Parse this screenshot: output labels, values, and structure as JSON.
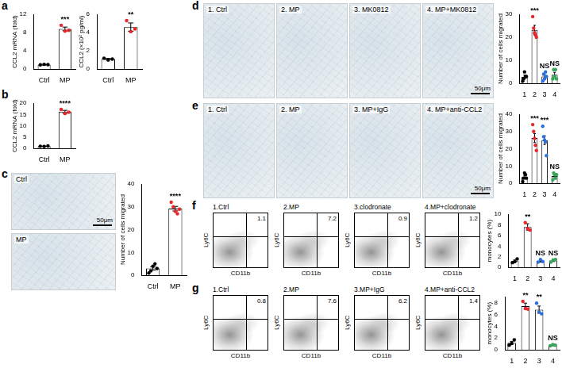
{
  "chart_data": [
    {
      "panel": "a",
      "type": "bar",
      "ylabel": "CCL2 mRNA (fold)",
      "categories": [
        "Ctrl",
        "MP"
      ],
      "values": [
        1.0,
        8.8
      ],
      "errors": [
        0.06,
        0.4
      ],
      "points": [
        [
          0.95,
          1.05,
          1.0
        ],
        [
          9.6,
          8.3,
          8.5
        ]
      ],
      "colors": [
        "#000000",
        "#e8262b"
      ],
      "annotations": [
        null,
        "***"
      ],
      "ylim": [
        0,
        12
      ],
      "yticks": [
        0,
        4,
        8,
        12
      ]
    },
    {
      "type": "bar",
      "ylabel": "CCL2 (×10² pg/ml)",
      "categories": [
        "Ctrl",
        "MP"
      ],
      "values": [
        1.1,
        4.6
      ],
      "errors": [
        0.07,
        0.45
      ],
      "points": [
        [
          1.2,
          1.0,
          1.1
        ],
        [
          5.3,
          4.1,
          4.4
        ]
      ],
      "colors": [
        "#000000",
        "#e8262b"
      ],
      "annotations": [
        null,
        "**"
      ],
      "ylim": [
        0,
        6
      ],
      "yticks": [
        0,
        2,
        4,
        6
      ]
    },
    {
      "panel": "b",
      "type": "bar",
      "ylabel": "CCL2 mRNA (fold)",
      "categories": [
        "Ctrl",
        "MP"
      ],
      "values": [
        1.0,
        16.2
      ],
      "errors": [
        0.05,
        0.6
      ],
      "points": [
        [
          1.0,
          0.9,
          1.1
        ],
        [
          17.2,
          15.4,
          16.0
        ]
      ],
      "colors": [
        "#000000",
        "#e8262b"
      ],
      "annotations": [
        null,
        "****"
      ],
      "ylim": [
        0,
        20
      ],
      "yticks": [
        0,
        5,
        10,
        15,
        20
      ]
    },
    {
      "type": "bar",
      "ylabel": "Number of cells migrated",
      "categories": [
        "Ctrl",
        "MP"
      ],
      "values": [
        3.0,
        29.2
      ],
      "errors": [
        0.7,
        1.0
      ],
      "points": [
        [
          1,
          2,
          4,
          5,
          3
        ],
        [
          32,
          30,
          28,
          27,
          29
        ]
      ],
      "colors": [
        "#000000",
        "#e8262b"
      ],
      "annotations": [
        null,
        "****"
      ],
      "ylim": [
        0,
        40
      ],
      "yticks": [
        0,
        10,
        20,
        30,
        40
      ]
    },
    {
      "type": "bar",
      "ylabel": "Number of cells migrated",
      "categories": [
        "1",
        "2",
        "3",
        "4"
      ],
      "values": [
        2.8,
        23.2,
        3.0,
        3.8
      ],
      "errors": [
        0.8,
        2.0,
        0.8,
        1.0
      ],
      "points": [
        [
          1,
          2,
          5,
          3,
          3
        ],
        [
          29,
          24,
          22,
          21,
          20
        ],
        [
          1,
          4,
          2,
          5,
          3
        ],
        [
          2,
          6,
          3,
          6,
          2
        ]
      ],
      "colors": [
        "#000000",
        "#e8262b",
        "#2a6fdb",
        "#3aa35a"
      ],
      "annotations": [
        null,
        "***",
        "NS",
        "NS"
      ],
      "ylim": [
        0,
        30
      ],
      "yticks": [
        0,
        10,
        20,
        30
      ]
    },
    {
      "type": "bar",
      "ylabel": "Number of cells migrated",
      "categories": [
        "1",
        "2",
        "3",
        "4"
      ],
      "values": [
        3.6,
        26.2,
        25.0,
        4.2
      ],
      "errors": [
        1.0,
        2.6,
        2.5,
        0.9
      ],
      "points": [
        [
          1,
          3,
          6,
          5,
          3
        ],
        [
          34,
          30,
          26,
          22,
          19
        ],
        [
          33,
          27,
          25,
          24,
          16
        ],
        [
          2,
          6,
          5,
          3,
          5
        ]
      ],
      "colors": [
        "#000000",
        "#e8262b",
        "#2a6fdb",
        "#3aa35a"
      ],
      "annotations": [
        null,
        "***",
        "***",
        "NS"
      ],
      "ylim": [
        0,
        40
      ],
      "yticks": [
        0,
        10,
        20,
        30,
        40
      ]
    },
    {
      "type": "bar",
      "ylabel": "monocytes (%)",
      "categories": [
        "1",
        "2",
        "3",
        "4"
      ],
      "values": [
        1.2,
        7.6,
        1.2,
        1.3
      ],
      "errors": [
        0.2,
        0.6,
        0.2,
        0.2
      ],
      "points": [
        [
          0.9,
          1.1,
          1.6
        ],
        [
          8.4,
          7.3,
          7.0
        ],
        [
          1.0,
          1.5,
          1.1
        ],
        [
          1.0,
          1.4,
          1.5
        ]
      ],
      "colors": [
        "#000000",
        "#e8262b",
        "#2a6fdb",
        "#3aa35a"
      ],
      "annotations": [
        null,
        "**",
        "NS",
        "NS"
      ],
      "ylim": [
        0,
        10
      ],
      "yticks": [
        0,
        2,
        4,
        6,
        8,
        10
      ]
    },
    {
      "type": "bar",
      "ylabel": "monocytes (%)",
      "categories": [
        "1",
        "2",
        "3",
        "4"
      ],
      "values": [
        1.2,
        7.4,
        6.8,
        0.8
      ],
      "errors": [
        0.25,
        0.5,
        0.6,
        0.1
      ],
      "points": [
        [
          0.8,
          1.1,
          1.7
        ],
        [
          8.2,
          7.0,
          6.9
        ],
        [
          7.9,
          6.4,
          6.1
        ],
        [
          0.7,
          0.9,
          0.8
        ]
      ],
      "colors": [
        "#000000",
        "#e8262b",
        "#2a6fdb",
        "#3aa35a"
      ],
      "annotations": [
        null,
        "**",
        "**",
        "NS"
      ],
      "ylim": [
        0,
        9
      ],
      "yticks": [
        0,
        2,
        4,
        6,
        8
      ]
    }
  ],
  "micrographs": [
    {
      "panel": "c",
      "images": [
        {
          "title": "Ctrl",
          "scale_bar": "50μm"
        },
        {
          "title": "MP"
        }
      ]
    },
    {
      "panel": "d",
      "images": [
        {
          "title": "1. Ctrl"
        },
        {
          "title": "2. MP"
        },
        {
          "title": "3. MK0812"
        },
        {
          "title": "4. MP+MK0812",
          "scale_bar": "50μm"
        }
      ]
    },
    {
      "panel": "e",
      "images": [
        {
          "title": "1. Ctrl"
        },
        {
          "title": "2. MP"
        },
        {
          "title": "3. MP+IgG"
        },
        {
          "title": "4. MP+anti-CCL2",
          "scale_bar": "50μm"
        }
      ]
    }
  ],
  "flow_plots": [
    {
      "panel": "f",
      "xlabel": "CD11b",
      "ylabel": "Ly6C",
      "plots": [
        {
          "title": "1.Ctrl",
          "gate_percent": 1.1
        },
        {
          "title": "2.MP",
          "gate_percent": 7.2
        },
        {
          "title": "3.clodronate",
          "gate_percent": 0.9
        },
        {
          "title": "4.MP+clodronate",
          "gate_percent": 1.2
        }
      ]
    },
    {
      "panel": "g",
      "xlabel": "CD11b",
      "ylabel": "Ly6C",
      "plots": [
        {
          "title": "1.Ctrl",
          "gate_percent": 0.8
        },
        {
          "title": "2.MP",
          "gate_percent": 7.6
        },
        {
          "title": "3.MP+IgG",
          "gate_percent": 6.2
        },
        {
          "title": "4.MP+anti-CCL2",
          "gate_percent": 1.4
        }
      ]
    }
  ]
}
